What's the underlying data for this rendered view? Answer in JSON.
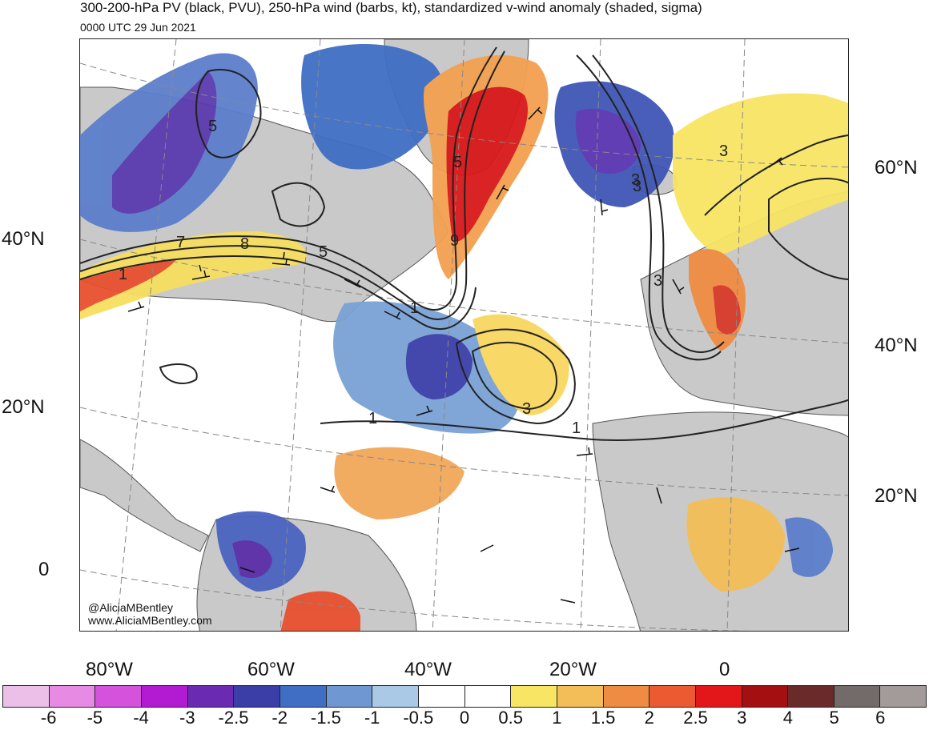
{
  "title": "300-200-hPa PV (black, PVU), 250-hPa wind (barbs, kt), standardized v-wind anomaly (shaded, sigma)",
  "subtitle": "0000 UTC 29 Jun 2021",
  "credits": [
    "@AliciaMBentley",
    "www.AliciaMBentley.com"
  ],
  "lat_labels_left": [
    "40°N",
    "20°N",
    "0"
  ],
  "lat_labels_right": [
    "60°N",
    "40°N",
    "20°N"
  ],
  "lon_labels": [
    "80°W",
    "60°W",
    "40°W",
    "20°W",
    "0"
  ],
  "contour_labels": [
    "5",
    "7",
    "8",
    "5",
    "1",
    "5",
    "9",
    "3",
    "3",
    "3",
    "1",
    "1",
    "3",
    "1",
    "3"
  ],
  "colorbar": {
    "colors": [
      "#ecbfe8",
      "#e68ae3",
      "#d452dc",
      "#b21bd1",
      "#6a2bb2",
      "#3b3ea7",
      "#3f6ec4",
      "#6f98d2",
      "#a9c9e7",
      "#ffffff",
      "#ffffff",
      "#f8e564",
      "#f3be58",
      "#ef8c43",
      "#ec5a32",
      "#e3171a",
      "#a40f12",
      "#6b2a2a",
      "#736a6a",
      "#a39a9a"
    ],
    "ticks": [
      "-6",
      "-5",
      "-4",
      "-3",
      "-2.5",
      "-2",
      "-1.5",
      "-1",
      "-0.5",
      "0",
      "0.5",
      "1",
      "1.5",
      "2",
      "2.5",
      "3",
      "4",
      "5",
      "6"
    ]
  }
}
